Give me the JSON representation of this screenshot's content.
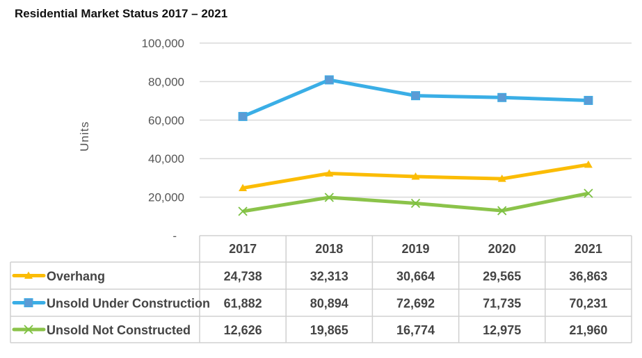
{
  "chart_data": {
    "type": "line",
    "title": "Residential Market Status 2017 – 2021",
    "ylabel": "Units",
    "xlabel": "",
    "categories": [
      "2017",
      "2018",
      "2019",
      "2020",
      "2021"
    ],
    "ylim": [
      0,
      100000
    ],
    "yticks": [
      0,
      20000,
      40000,
      60000,
      80000,
      100000
    ],
    "ytick_labels": [
      "-",
      "20,000",
      "40,000",
      "60,000",
      "80,000",
      "100,000"
    ],
    "grid": true,
    "legend": "data-table",
    "series": [
      {
        "name": "Overhang",
        "values": [
          24738,
          32313,
          30664,
          29565,
          36863
        ],
        "labels": [
          "24,738",
          "32,313",
          "30,664",
          "29,565",
          "36,863"
        ],
        "color": "#FBBC05",
        "marker": "triangle"
      },
      {
        "name": "Unsold Under Construction",
        "values": [
          61882,
          80894,
          72692,
          71735,
          70231
        ],
        "labels": [
          "61,882",
          "80,894",
          "72,692",
          "71,735",
          "70,231"
        ],
        "color": "#3AAEE6",
        "marker": "square"
      },
      {
        "name": "Unsold Not Constructed",
        "values": [
          12626,
          19865,
          16774,
          12975,
          21960
        ],
        "labels": [
          "12,626",
          "19,865",
          "16,774",
          "12,975",
          "21,960"
        ],
        "color": "#8BC34A",
        "marker": "x"
      }
    ]
  }
}
